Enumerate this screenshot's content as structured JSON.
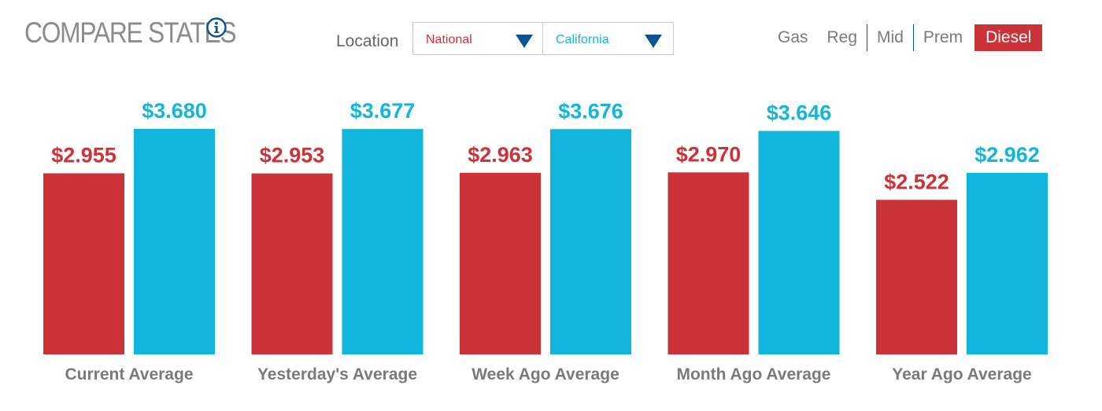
{
  "header": {
    "title": "COMPARE STATES",
    "location_label": "Location",
    "location_a": "National",
    "location_b": "California",
    "fuel_label": "Gas",
    "fuel_options": [
      "Reg",
      "Mid",
      "Prem",
      "Diesel"
    ],
    "fuel_selected": "Diesel"
  },
  "colors": {
    "national": "#cc3338",
    "state": "#12b5dc",
    "accent_blue": "#0b5394",
    "muted_text": "#7a7a7a"
  },
  "icons": {
    "info": "info-icon",
    "dropdown": "triangle-down-icon"
  },
  "chart_data": {
    "type": "bar",
    "categories": [
      "Current Average",
      "Yesterday's Average",
      "Week Ago Average",
      "Month Ago Average",
      "Year Ago Average"
    ],
    "series": [
      {
        "name": "National",
        "values": [
          2.955,
          2.953,
          2.963,
          2.97,
          2.522
        ],
        "labels": [
          "$2.955",
          "$2.953",
          "$2.963",
          "$2.970",
          "$2.522"
        ]
      },
      {
        "name": "California",
        "values": [
          3.68,
          3.677,
          3.676,
          3.646,
          2.962
        ],
        "labels": [
          "$3.680",
          "$3.677",
          "$3.676",
          "$3.646",
          "$2.962"
        ]
      }
    ],
    "title": "",
    "xlabel": "",
    "ylabel": "",
    "grid": false,
    "legend": "none"
  }
}
